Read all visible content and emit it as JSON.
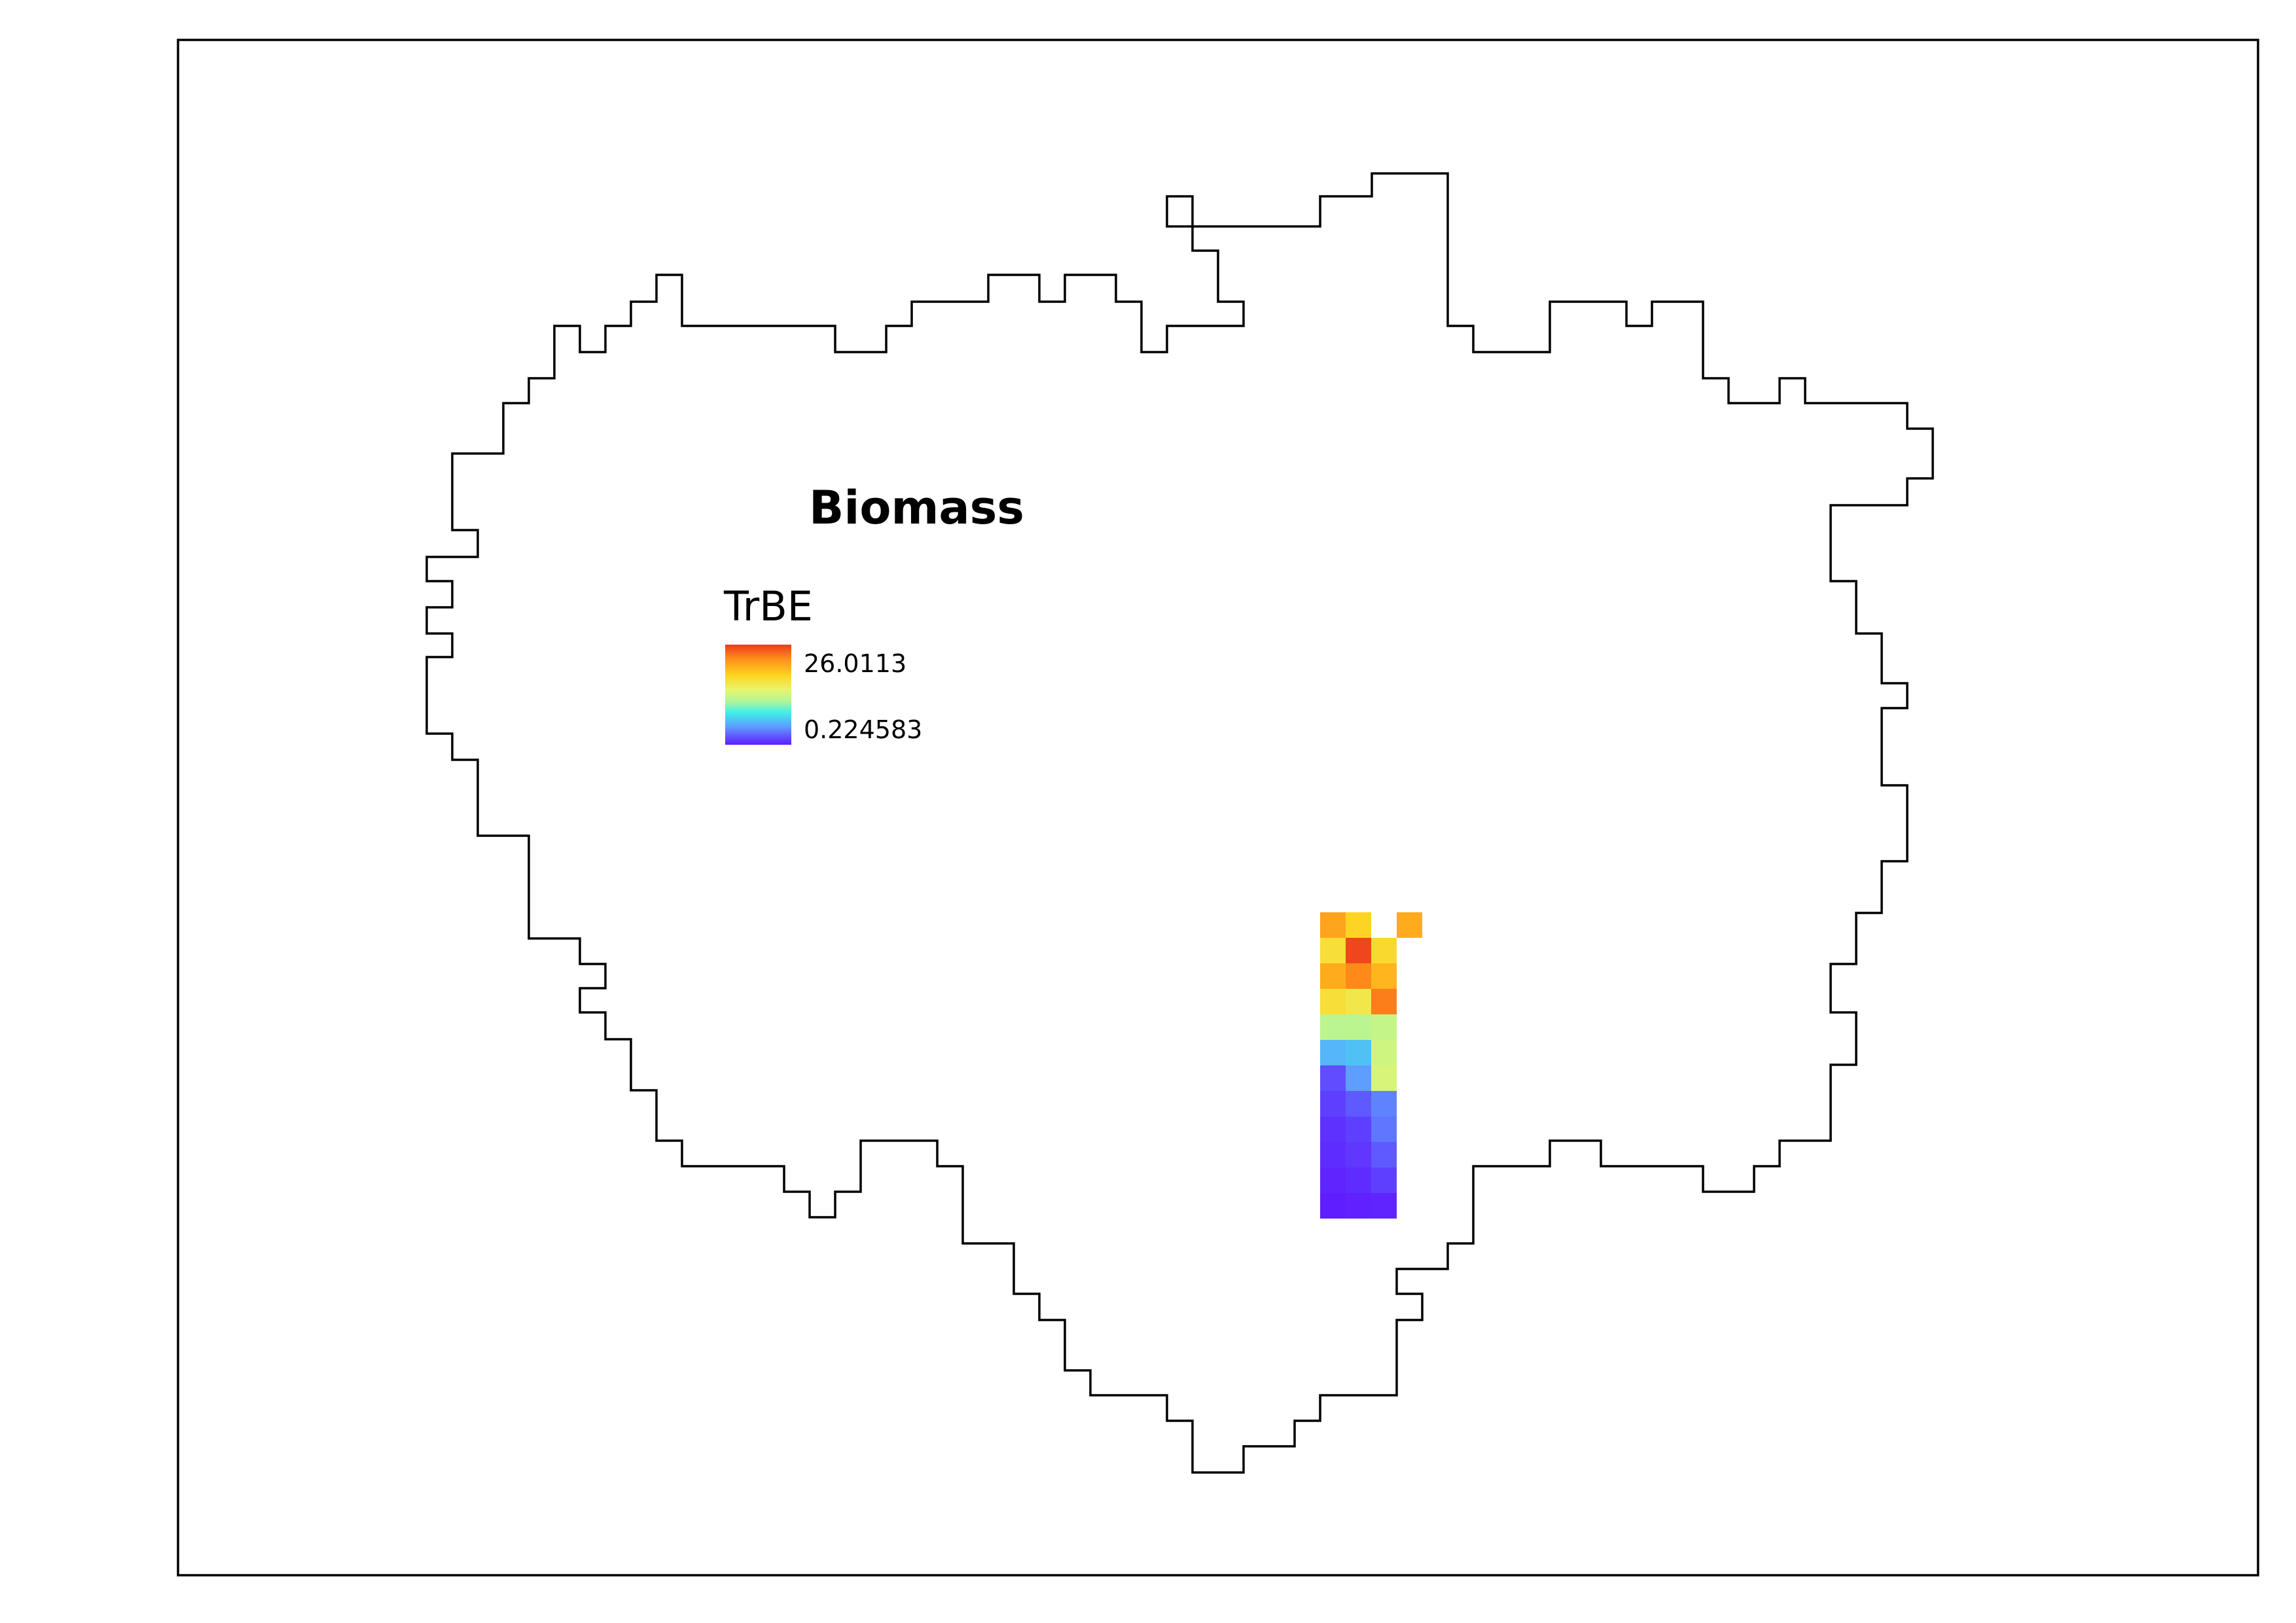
{
  "map": {
    "title": "Biomass",
    "layer": "TrBE"
  },
  "legend": {
    "title": "TrBE",
    "max_label": "26.0113",
    "min_label": "0.224583",
    "max_value": 26.0113,
    "min_value": 0.224583,
    "ramp_colors": [
      "#ee3a1e",
      "#ff8c1a",
      "#ffd21f",
      "#e8f56a",
      "#aef59a",
      "#3ef0e8",
      "#5f9bff",
      "#5f1cff"
    ]
  },
  "colors": {
    "outline": "#000000",
    "frame": "#000000",
    "background": "#ffffff"
  },
  "raster": {
    "cells": [
      {
        "row": 0,
        "col": 0,
        "value": 21.0
      },
      {
        "row": 0,
        "col": 1,
        "value": 18.0
      },
      {
        "row": 0,
        "col": 3,
        "value": 20.5
      },
      {
        "row": 1,
        "col": 0,
        "value": 17.0
      },
      {
        "row": 1,
        "col": 1,
        "value": 25.5
      },
      {
        "row": 1,
        "col": 2,
        "value": 17.5
      },
      {
        "row": 2,
        "col": 0,
        "value": 20.5
      },
      {
        "row": 2,
        "col": 1,
        "value": 22.5
      },
      {
        "row": 2,
        "col": 2,
        "value": 20.0
      },
      {
        "row": 3,
        "col": 0,
        "value": 17.0
      },
      {
        "row": 3,
        "col": 1,
        "value": 16.0
      },
      {
        "row": 3,
        "col": 2,
        "value": 23.0
      },
      {
        "row": 4,
        "col": 0,
        "value": 12.0
      },
      {
        "row": 4,
        "col": 1,
        "value": 12.0
      },
      {
        "row": 4,
        "col": 2,
        "value": 12.5
      },
      {
        "row": 5,
        "col": 0,
        "value": 6.0
      },
      {
        "row": 5,
        "col": 1,
        "value": 6.5
      },
      {
        "row": 5,
        "col": 2,
        "value": 13.0
      },
      {
        "row": 6,
        "col": 0,
        "value": 2.0
      },
      {
        "row": 6,
        "col": 1,
        "value": 5.0
      },
      {
        "row": 6,
        "col": 2,
        "value": 13.5
      },
      {
        "row": 7,
        "col": 0,
        "value": 1.5
      },
      {
        "row": 7,
        "col": 1,
        "value": 2.5
      },
      {
        "row": 7,
        "col": 2,
        "value": 4.0
      },
      {
        "row": 8,
        "col": 0,
        "value": 1.0
      },
      {
        "row": 8,
        "col": 1,
        "value": 1.5
      },
      {
        "row": 8,
        "col": 2,
        "value": 3.5
      },
      {
        "row": 9,
        "col": 0,
        "value": 0.8
      },
      {
        "row": 9,
        "col": 1,
        "value": 1.2
      },
      {
        "row": 9,
        "col": 2,
        "value": 2.5
      },
      {
        "row": 10,
        "col": 0,
        "value": 0.5
      },
      {
        "row": 10,
        "col": 1,
        "value": 0.8
      },
      {
        "row": 10,
        "col": 2,
        "value": 1.5
      },
      {
        "row": 11,
        "col": 0,
        "value": 0.3
      },
      {
        "row": 11,
        "col": 1,
        "value": 0.4
      },
      {
        "row": 11,
        "col": 2,
        "value": 0.5
      }
    ]
  }
}
